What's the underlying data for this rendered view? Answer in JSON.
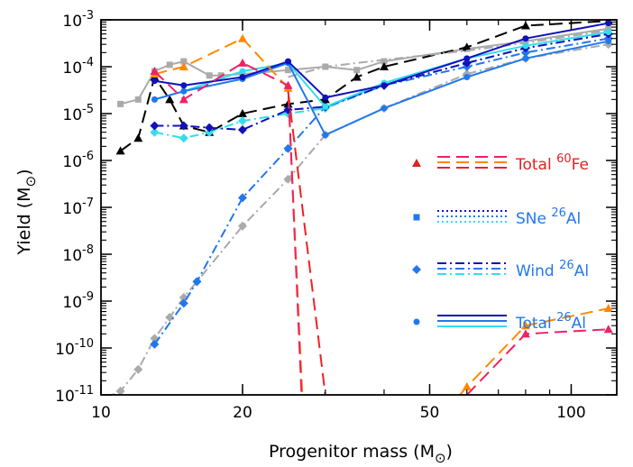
{
  "chart_data": {
    "type": "line",
    "xlabel": "Progenitor mass (M",
    "ylabel": "Yield (M",
    "x_scale": "log",
    "y_scale": "log",
    "xlim": [
      10,
      125
    ],
    "ylim": [
      1e-11,
      0.001
    ],
    "x_ticks": [
      {
        "value": 10,
        "label": "10"
      },
      {
        "value": 20,
        "label": "20"
      },
      {
        "value": 50,
        "label": "50"
      },
      {
        "value": 100,
        "label": "100"
      }
    ],
    "y_ticks": [
      {
        "value": 1e-11,
        "base": "10",
        "exp": "-11"
      },
      {
        "value": 1e-10,
        "base": "10",
        "exp": "-10"
      },
      {
        "value": 1e-09,
        "base": "10",
        "exp": "-9"
      },
      {
        "value": 1e-08,
        "base": "10",
        "exp": "-8"
      },
      {
        "value": 1e-07,
        "base": "10",
        "exp": "-7"
      },
      {
        "value": 1e-06,
        "base": "10",
        "exp": "-6"
      },
      {
        "value": 1e-05,
        "base": "10",
        "exp": "-5"
      },
      {
        "value": 0.0001,
        "base": "10",
        "exp": "-4"
      },
      {
        "value": 0.001,
        "base": "10",
        "exp": "-3"
      }
    ],
    "legend": [
      {
        "text": "Total ",
        "isotope_mass": "60",
        "element": "Fe",
        "color": "#dd2222",
        "marker": "triangle",
        "dash": "14,7",
        "lines": [
          "#ee2266",
          "#ff8800",
          "#ee2222"
        ]
      },
      {
        "text": "SNe ",
        "isotope_mass": "26",
        "element": "Al",
        "color": "#2277ee",
        "marker": "square",
        "dash": "2,3",
        "lines": [
          "#1111bb",
          "#2277ee",
          "#33ddee"
        ]
      },
      {
        "text": "Wind ",
        "isotope_mass": "26",
        "element": "Al",
        "color": "#2277ee",
        "marker": "diamond",
        "dash": "10,4,2,4",
        "lines": [
          "#1111bb",
          "#2277ee",
          "#33ddee"
        ]
      },
      {
        "text": "Total ",
        "isotope_mass": "26",
        "element": "Al",
        "color": "#2277ee",
        "marker": "circle",
        "dash": "",
        "lines": [
          "#1111bb",
          "#2277ee",
          "#33ddee"
        ]
      }
    ],
    "series": [
      {
        "color": "#aaaaaa",
        "dash": "",
        "marker": "square",
        "points": [
          [
            11,
            1.6e-05
          ],
          [
            12,
            2e-05
          ],
          [
            13,
            8e-05
          ],
          [
            14,
            0.00011
          ],
          [
            15,
            0.00013
          ],
          [
            17,
            6.5e-05
          ],
          [
            18,
            6.5e-05
          ],
          [
            20,
            7e-05
          ],
          [
            25,
            8.5e-05
          ],
          [
            30,
            0.0001
          ],
          [
            35,
            8.5e-05
          ],
          [
            40,
            0.00013
          ],
          [
            60,
            0.00024
          ],
          [
            80,
            0.00035
          ],
          [
            120,
            0.00065
          ]
        ]
      },
      {
        "color": "#000000",
        "dash": "14,7",
        "marker": "triangle",
        "points": [
          [
            11,
            1.6e-06
          ],
          [
            12,
            3e-06
          ],
          [
            13,
            6e-05
          ],
          [
            14,
            2e-05
          ],
          [
            15,
            5.5e-06
          ],
          [
            17,
            4e-06
          ],
          [
            20,
            1e-05
          ],
          [
            25,
            1.6e-05
          ],
          [
            30,
            2e-05
          ],
          [
            35,
            6e-05
          ],
          [
            40,
            0.0001
          ],
          [
            60,
            0.00026
          ],
          [
            80,
            0.00075
          ],
          [
            120,
            0.00095
          ]
        ]
      },
      {
        "color": "#aaaaaa",
        "dash": "10,4,2,4",
        "marker": "diamond",
        "points": [
          [
            10,
            8e-12
          ],
          [
            11,
            1.2e-11
          ],
          [
            12,
            3.5e-11
          ],
          [
            13,
            1.6e-10
          ],
          [
            14,
            4.5e-10
          ],
          [
            15,
            1.2e-09
          ],
          [
            16,
            2.6e-09
          ],
          [
            20,
            4e-08
          ],
          [
            25,
            4e-07
          ],
          [
            30,
            3.5e-06
          ],
          [
            40,
            1.3e-05
          ],
          [
            60,
            7e-05
          ],
          [
            80,
            0.00015
          ],
          [
            120,
            0.0003
          ]
        ]
      },
      {
        "color": "#aaaaaa",
        "dash": "10,4,2,4",
        "marker": "",
        "points": [
          [
            25,
            6e-05
          ],
          [
            30,
            0.0001
          ],
          [
            35,
            0.00012
          ],
          [
            40,
            0.00014
          ],
          [
            60,
            0.00022
          ],
          [
            80,
            0.00032
          ],
          [
            120,
            0.0006
          ]
        ]
      },
      {
        "color": "#2277ee",
        "dash": "10,4,2,4",
        "marker": "diamond",
        "points": [
          [
            13,
            1.2e-10
          ],
          [
            15,
            9e-10
          ],
          [
            16,
            2.6e-09
          ],
          [
            20,
            1.6e-07
          ],
          [
            25,
            1.8e-06
          ],
          [
            30,
            1.4e-05
          ],
          [
            40,
            4e-05
          ],
          [
            60,
            0.0001
          ],
          [
            80,
            0.0002
          ],
          [
            120,
            0.0004
          ]
        ]
      },
      {
        "color": "#33ddee",
        "dash": "10,4,2,4",
        "marker": "diamond",
        "points": [
          [
            13,
            4e-06
          ],
          [
            15,
            3e-06
          ],
          [
            17,
            4e-06
          ],
          [
            20,
            7e-06
          ],
          [
            25,
            1e-05
          ],
          [
            30,
            1.3e-05
          ],
          [
            40,
            4e-05
          ],
          [
            60,
            0.00012
          ],
          [
            80,
            0.00025
          ],
          [
            120,
            0.0005
          ]
        ]
      },
      {
        "color": "#1111bb",
        "dash": "10,4,2,4",
        "marker": "diamond",
        "points": [
          [
            13,
            5.5e-06
          ],
          [
            15,
            5.5e-06
          ],
          [
            17,
            5e-06
          ],
          [
            20,
            4.5e-06
          ],
          [
            25,
            1.2e-05
          ],
          [
            30,
            1.4e-05
          ],
          [
            40,
            4e-05
          ],
          [
            60,
            0.00012
          ],
          [
            80,
            0.00025
          ],
          [
            120,
            0.0005
          ]
        ]
      },
      {
        "color": "#33ddee",
        "dash": "",
        "marker": "circle",
        "points": [
          [
            13,
            2e-05
          ],
          [
            15,
            3e-05
          ],
          [
            20,
            8e-05
          ],
          [
            25,
            0.00012
          ],
          [
            30,
            1.4e-05
          ],
          [
            40,
            4.5e-05
          ],
          [
            60,
            0.00015
          ],
          [
            80,
            0.00028
          ],
          [
            120,
            0.00055
          ]
        ]
      },
      {
        "color": "#2277ee",
        "dash": "",
        "marker": "circle",
        "points": [
          [
            13,
            2e-05
          ],
          [
            15,
            3e-05
          ],
          [
            20,
            5.5e-05
          ],
          [
            25,
            0.00012
          ],
          [
            30,
            3.5e-06
          ],
          [
            40,
            1.3e-05
          ],
          [
            60,
            6e-05
          ],
          [
            80,
            0.00015
          ],
          [
            120,
            0.00035
          ]
        ]
      },
      {
        "color": "#1111bb",
        "dash": "",
        "marker": "circle",
        "points": [
          [
            13,
            5e-05
          ],
          [
            15,
            4e-05
          ],
          [
            20,
            6e-05
          ],
          [
            25,
            0.00013
          ],
          [
            30,
            2.2e-05
          ],
          [
            40,
            4e-05
          ],
          [
            60,
            0.00015
          ],
          [
            80,
            0.0004
          ],
          [
            120,
            0.00085
          ]
        ]
      },
      {
        "color": "#ff8800",
        "dash": "14,7",
        "marker": "triangle",
        "points": [
          [
            13,
            7e-05
          ],
          [
            15,
            0.0001
          ],
          [
            20,
            0.0004
          ],
          [
            25,
            3.5e-05
          ],
          [
            26.8,
            1e-11
          ]
        ]
      },
      {
        "color": "#ff8800",
        "dash": "14,7",
        "marker": "triangle",
        "points": [
          [
            58,
            1e-11
          ],
          [
            60,
            1.5e-11
          ],
          [
            80,
            3e-10
          ],
          [
            120,
            7e-10
          ]
        ]
      },
      {
        "color": "#ee2266",
        "dash": "14,7",
        "marker": "triangle",
        "points": [
          [
            13,
            8e-05
          ],
          [
            15,
            2e-05
          ],
          [
            20,
            0.00012
          ],
          [
            25,
            4e-05
          ],
          [
            26.7,
            1e-11
          ]
        ]
      },
      {
        "color": "#ee2266",
        "dash": "14,7",
        "marker": "triangle",
        "points": [
          [
            60,
            1e-11
          ],
          [
            80,
            2e-10
          ],
          [
            120,
            2.5e-10
          ]
        ]
      },
      {
        "color": "#ee2222",
        "dash": "14,7",
        "marker": "",
        "points": [
          [
            25,
            3e-05
          ],
          [
            30,
            1e-11
          ]
        ]
      }
    ]
  }
}
